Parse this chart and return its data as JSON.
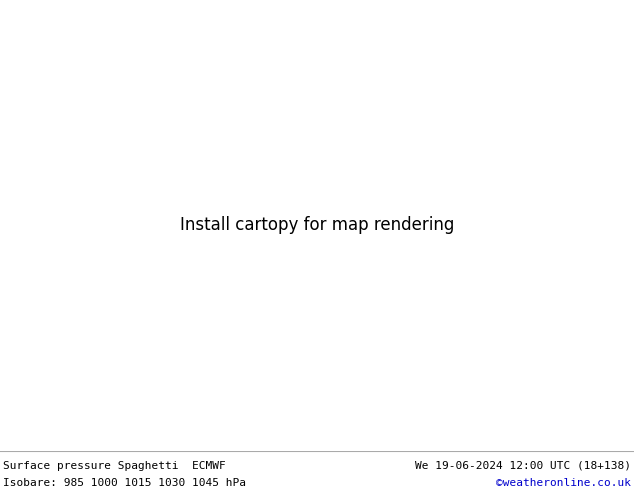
{
  "title_left": "Surface pressure Spaghetti  ECMWF",
  "title_right": "We 19-06-2024 12:00 UTC (18+138)",
  "subtitle_left": "Isobare: 985 1000 1015 1030 1045 hPa",
  "subtitle_right": "©weatheronline.co.uk",
  "subtitle_right_color": "#0000cc",
  "bg_color": "#ffffff",
  "ocean_color": "#e8f4f8",
  "land_color": "#c8edc8",
  "border_color": "#888888",
  "text_color": "#000000",
  "lon_min": 90,
  "lon_max": 180,
  "lat_min": -20,
  "lat_max": 55,
  "fig_width": 6.34,
  "fig_height": 4.9,
  "dpi": 100,
  "num_members": 51,
  "spaghetti_colors": [
    "#808080",
    "#ff00ff",
    "#ff0000",
    "#0000ff",
    "#00aa00",
    "#ff8800",
    "#9900cc",
    "#00cccc",
    "#886600",
    "#006600",
    "#cc0066",
    "#0066cc",
    "#cc6600",
    "#006666",
    "#660066",
    "#336600",
    "#ff9900",
    "#00ff00",
    "#6600cc",
    "#ff0066",
    "#00ccff",
    "#808080",
    "#ff00ff",
    "#ff0000",
    "#0000ff",
    "#00aa00",
    "#ff8800",
    "#9900cc",
    "#00cccc",
    "#886600",
    "#006600",
    "#cc0066",
    "#0066cc",
    "#cc6600",
    "#006666",
    "#660066",
    "#336600",
    "#ff9900",
    "#00ff00",
    "#6600cc",
    "#ff0066",
    "#00ccff",
    "#808080",
    "#ff00ff",
    "#ff0000",
    "#0000ff",
    "#00aa00",
    "#ff8800",
    "#9900cc",
    "#00cccc",
    "#886600"
  ]
}
